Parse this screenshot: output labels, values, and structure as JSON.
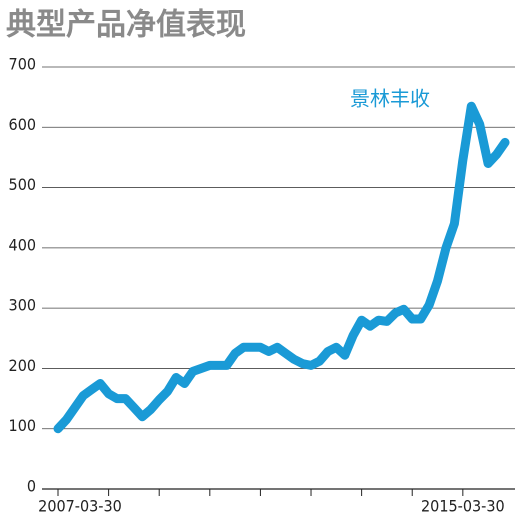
{
  "chart_data": {
    "type": "line",
    "title": "典型产品净值表现",
    "categories": [
      "2007-03-30",
      null,
      null,
      null,
      null,
      null,
      null,
      null,
      null,
      null,
      null,
      null,
      null,
      null,
      null,
      null,
      null,
      null,
      null,
      null,
      null,
      null,
      null,
      null,
      null,
      null,
      null,
      null,
      null,
      null,
      null,
      null,
      null,
      null,
      null,
      null,
      null,
      null,
      null,
      null,
      null,
      null,
      null,
      null,
      null,
      null,
      null,
      null,
      "2015-03-30",
      null,
      null,
      null,
      null,
      null
    ],
    "series": [
      {
        "name": "景林丰收",
        "color": "#1a9ad6",
        "values": [
          100,
          115,
          135,
          155,
          165,
          175,
          158,
          150,
          150,
          135,
          120,
          132,
          148,
          162,
          185,
          175,
          195,
          200,
          205,
          205,
          205,
          225,
          235,
          235,
          235,
          228,
          235,
          225,
          215,
          208,
          205,
          212,
          228,
          235,
          222,
          255,
          280,
          270,
          280,
          278,
          292,
          298,
          282,
          282,
          305,
          345,
          400,
          440,
          545,
          635,
          605,
          540,
          555,
          575
        ]
      }
    ],
    "ylim": [
      0,
      700
    ],
    "yticks": [
      0,
      100,
      200,
      300,
      400,
      500,
      600,
      700
    ],
    "grid": true
  }
}
